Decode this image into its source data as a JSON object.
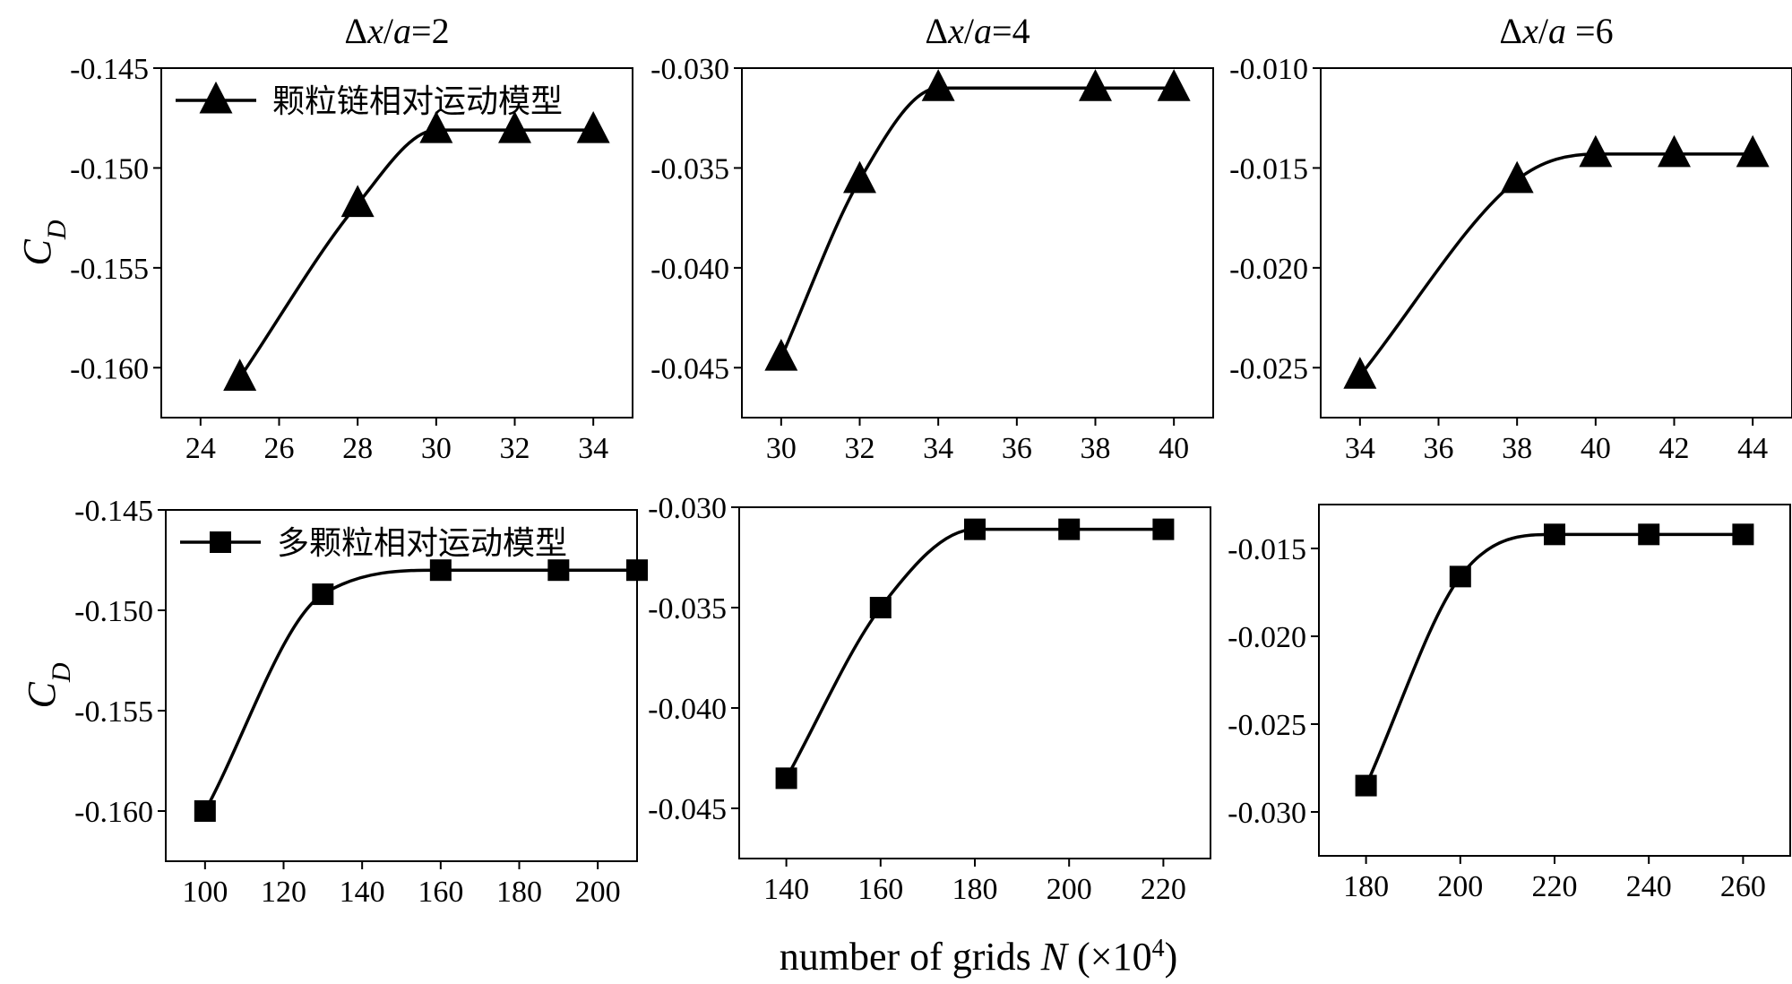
{
  "figure": {
    "xlabel_main": "number of grids",
    "xlabel_var": "N",
    "xlabel_unit_pre": " (×10",
    "xlabel_unit_exp": "4",
    "xlabel_unit_post": ")",
    "ylabel_main": "C",
    "ylabel_sub": "D"
  },
  "chart_data": [
    {
      "type": "line",
      "row": 1,
      "col": 1,
      "title_pre": "Δ",
      "title_var1": "x",
      "title_slash": "/",
      "title_var2": "a",
      "title_post": "=2",
      "x": [
        25,
        28,
        30,
        32,
        34
      ],
      "y": [
        -0.1605,
        -0.1518,
        -0.1481,
        -0.1481,
        -0.1481
      ],
      "xlim": [
        23,
        35
      ],
      "ylim": [
        -0.1625,
        -0.145
      ],
      "xticks": [
        "24",
        "26",
        "28",
        "30",
        "32",
        "34"
      ],
      "yticks": [
        "-0.145",
        "-0.150",
        "-0.155",
        "-0.160"
      ],
      "xtick_values": [
        24,
        26,
        28,
        30,
        32,
        34
      ],
      "ytick_values": [
        -0.145,
        -0.15,
        -0.155,
        -0.16
      ],
      "marker": "triangle",
      "series_name": "颗粒链相对运动模型",
      "ylabel": true
    },
    {
      "type": "line",
      "row": 1,
      "col": 2,
      "title_pre": "Δ",
      "title_var1": "x",
      "title_slash": "/",
      "title_var2": "a",
      "title_post": "=4",
      "x": [
        30,
        32,
        34,
        38,
        40
      ],
      "y": [
        -0.0445,
        -0.0356,
        -0.031,
        -0.031,
        -0.031
      ],
      "xlim": [
        29,
        41
      ],
      "ylim": [
        -0.0475,
        -0.03
      ],
      "xticks": [
        "30",
        "32",
        "34",
        "36",
        "38",
        "40"
      ],
      "yticks": [
        "-0.030",
        "-0.035",
        "-0.040",
        "-0.045"
      ],
      "xtick_values": [
        30,
        32,
        34,
        36,
        38,
        40
      ],
      "ytick_values": [
        -0.03,
        -0.035,
        -0.04,
        -0.045
      ],
      "marker": "triangle"
    },
    {
      "type": "line",
      "row": 1,
      "col": 3,
      "title_pre": "Δ",
      "title_var1": "x",
      "title_slash": "/",
      "title_var2": "a",
      "title_post": " =6",
      "x": [
        34,
        38,
        40,
        42,
        44
      ],
      "y": [
        -0.0254,
        -0.0156,
        -0.0143,
        -0.0143,
        -0.0143
      ],
      "xlim": [
        33,
        45
      ],
      "ylim": [
        -0.0275,
        -0.01
      ],
      "xticks": [
        "34",
        "36",
        "38",
        "40",
        "42",
        "44"
      ],
      "yticks": [
        "-0.010",
        "-0.015",
        "-0.020",
        "-0.025"
      ],
      "xtick_values": [
        34,
        36,
        38,
        40,
        42,
        44
      ],
      "ytick_values": [
        -0.01,
        -0.015,
        -0.02,
        -0.025
      ],
      "marker": "triangle"
    },
    {
      "type": "line",
      "row": 2,
      "col": 1,
      "x": [
        100,
        130,
        160,
        190,
        210
      ],
      "y": [
        -0.16,
        -0.1492,
        -0.148,
        -0.148,
        -0.148
      ],
      "xlim": [
        90,
        210
      ],
      "ylim": [
        -0.1625,
        -0.145
      ],
      "xticks": [
        "100",
        "120",
        "140",
        "160",
        "180",
        "200"
      ],
      "yticks": [
        "-0.145",
        "-0.150",
        "-0.155",
        "-0.160"
      ],
      "xtick_values": [
        100,
        120,
        140,
        160,
        180,
        200
      ],
      "ytick_values": [
        -0.145,
        -0.15,
        -0.155,
        -0.16
      ],
      "marker": "square",
      "series_name": "多颗粒相对运动模型",
      "ylabel": true
    },
    {
      "type": "line",
      "row": 2,
      "col": 2,
      "x": [
        140,
        160,
        180,
        200,
        220
      ],
      "y": [
        -0.0435,
        -0.035,
        -0.0311,
        -0.0311,
        -0.0311
      ],
      "xlim": [
        130,
        230
      ],
      "ylim": [
        -0.0475,
        -0.03
      ],
      "xticks": [
        "140",
        "160",
        "180",
        "200",
        "220"
      ],
      "yticks": [
        "-0.030",
        "-0.035",
        "-0.040",
        "-0.045"
      ],
      "xtick_values": [
        140,
        160,
        180,
        200,
        220
      ],
      "ytick_values": [
        -0.03,
        -0.035,
        -0.04,
        -0.045
      ],
      "marker": "square"
    },
    {
      "type": "line",
      "row": 2,
      "col": 3,
      "x": [
        180,
        200,
        220,
        240,
        260
      ],
      "y": [
        -0.0285,
        -0.0166,
        -0.0142,
        -0.0142,
        -0.0142
      ],
      "xlim": [
        170,
        270
      ],
      "ylim": [
        -0.0325,
        -0.0125
      ],
      "xticks": [
        "180",
        "200",
        "220",
        "240",
        "260"
      ],
      "yticks": [
        "-0.015",
        "-0.020",
        "-0.025",
        "-0.030"
      ],
      "xtick_values": [
        180,
        200,
        220,
        240,
        260
      ],
      "ytick_values": [
        -0.015,
        -0.02,
        -0.025,
        -0.03
      ],
      "marker": "square"
    }
  ]
}
